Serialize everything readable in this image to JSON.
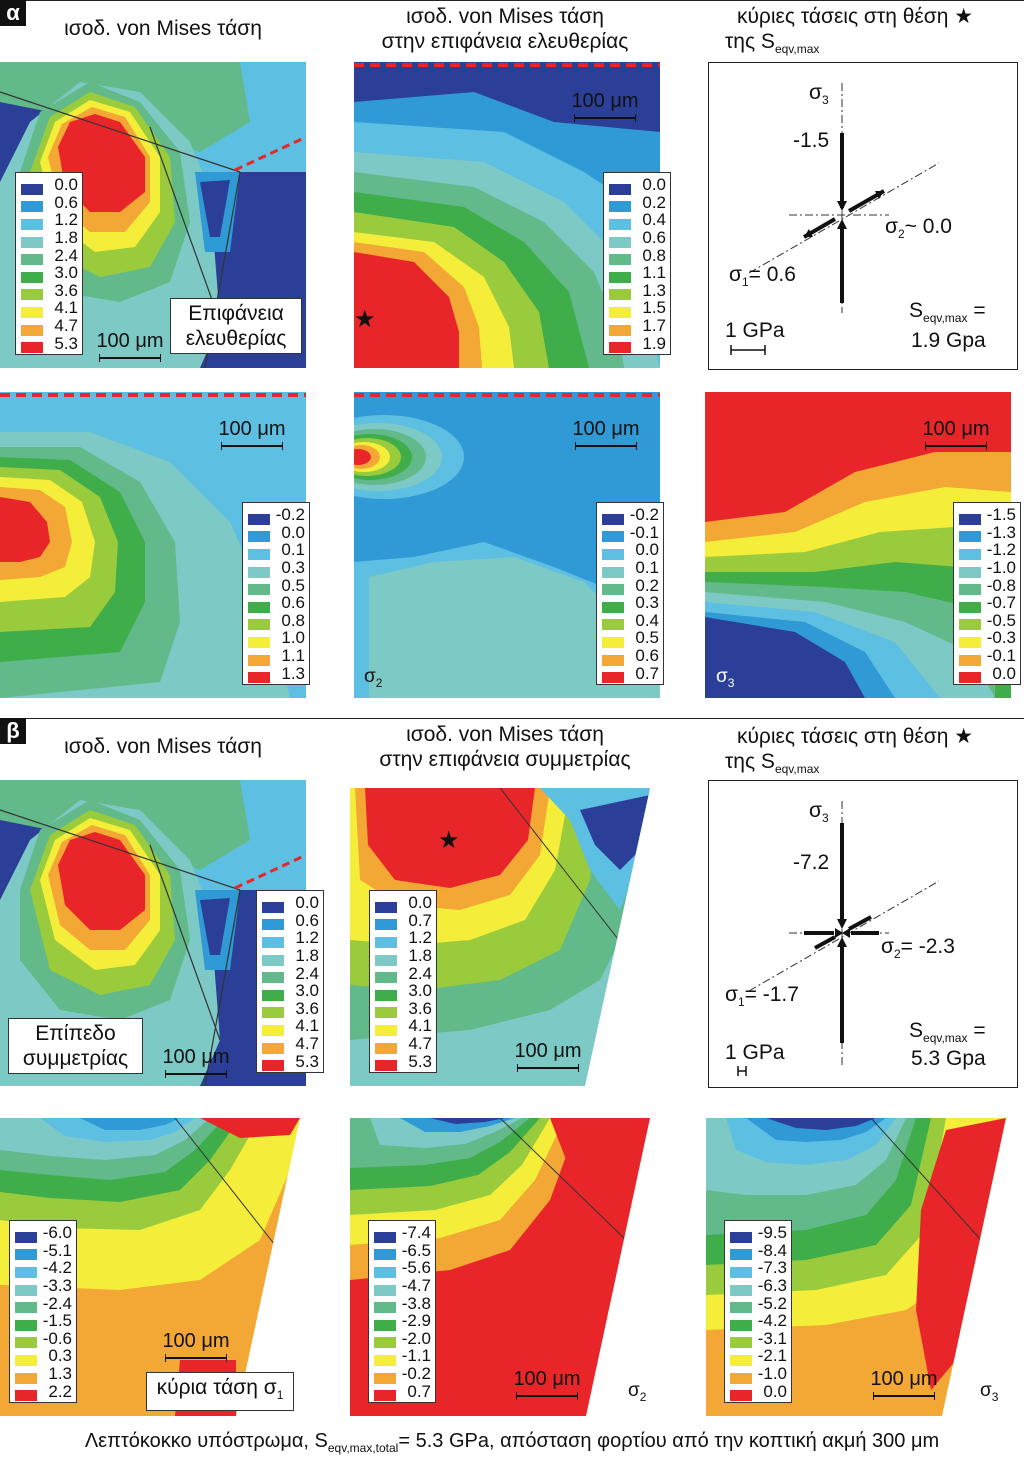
{
  "section_a": {
    "badge": "α",
    "titles": {
      "col1": "ισοδ. von Mises τάση",
      "col2_line1": "ισοδ. von Mises τάση",
      "col2_line2": "στην επιφάνεια ελευθερίας",
      "col3_line1": "κύριες τάσεις στη θέση ★",
      "col3_line2_prefix": "της S",
      "col3_line2_sub": "eqv,max"
    },
    "legends": {
      "vm1": [
        "0.0",
        "0.6",
        "1.2",
        "1.8",
        "2.4",
        "3.0",
        "3.6",
        "4.1",
        "4.7",
        "5.3"
      ],
      "vm2": [
        "0.0",
        "0.2",
        "0.4",
        "0.6",
        "0.8",
        "1.1",
        "1.3",
        "1.5",
        "1.7",
        "1.9"
      ],
      "s1": [
        "-0.2",
        "0.0",
        "0.1",
        "0.3",
        "0.5",
        "0.6",
        "0.8",
        "1.0",
        "1.1",
        "1.3"
      ],
      "s2": [
        "-0.2",
        "-0.1",
        "0.0",
        "0.1",
        "0.2",
        "0.3",
        "0.4",
        "0.5",
        "0.6",
        "0.7"
      ],
      "s3": [
        "-1.5",
        "-1.3",
        "-1.2",
        "-1.0",
        "-0.8",
        "-0.7",
        "-0.5",
        "-0.3",
        "-0.1",
        "0.0"
      ]
    },
    "scale_label": "100 μm",
    "surface_label_line1": "Επιφάνεια",
    "surface_label_line2": "ελευθερίας",
    "sigma2_label": "σ",
    "sigma2_sub": "2",
    "sigma3_label": "σ",
    "sigma3_sub": "3",
    "stress": {
      "s3_axis_prefix": "σ",
      "s3_axis_sub": "3",
      "s3_value": "-1.5",
      "s2_prefix": "σ",
      "s2_sub": "2",
      "s2_value": "~ 0.0",
      "s1_prefix": "σ",
      "s1_sub": "1",
      "s1_value": "= 0.6",
      "unit": "1 GPa",
      "seqv_prefix": "S",
      "seqv_sub": "eqv,max",
      "seqv_eq": " =",
      "seqv_value": "1.9 Gpa"
    }
  },
  "section_b": {
    "badge": "β",
    "titles": {
      "col1": "ισοδ. von Mises τάση",
      "col2_line1": "ισοδ. von Mises τάση",
      "col2_line2": "στην επιφάνεια συμμετρίας",
      "col3_line1": "κύριες τάσεις στη θέση ★",
      "col3_line2_prefix": "της S",
      "col3_line2_sub": "eqv,max"
    },
    "legends": {
      "vm1": [
        "0.0",
        "0.6",
        "1.2",
        "1.8",
        "2.4",
        "3.0",
        "3.6",
        "4.1",
        "4.7",
        "5.3"
      ],
      "vm2": [
        "0.0",
        "0.7",
        "1.2",
        "1.8",
        "2.4",
        "3.0",
        "3.6",
        "4.1",
        "4.7",
        "5.3"
      ],
      "s1": [
        "-6.0",
        "-5.1",
        "-4.2",
        "-3.3",
        "-2.4",
        "-1.5",
        "-0.6",
        "0.3",
        "1.3",
        "2.2"
      ],
      "s2": [
        "-7.4",
        "-6.5",
        "-5.6",
        "-4.7",
        "-3.8",
        "-2.9",
        "-2.0",
        "-1.1",
        "-0.2",
        "0.7"
      ],
      "s3": [
        "-9.5",
        "-8.4",
        "-7.3",
        "-6.3",
        "-5.2",
        "-4.2",
        "-3.1",
        "-2.1",
        "-1.0",
        "0.0"
      ]
    },
    "scale_label": "100 μm",
    "symmetry_label_line1": "Επίπεδο",
    "symmetry_label_line2": "συμμετρίας",
    "sigma1_box_label": "κύρια τάση σ",
    "sigma1_box_sub": "1",
    "sigma2_label": "σ",
    "sigma2_sub": "2",
    "sigma3_label": "σ",
    "sigma3_sub": "3",
    "stress": {
      "s3_axis_prefix": "σ",
      "s3_axis_sub": "3",
      "s3_value": "-7.2",
      "s2_prefix": "σ",
      "s2_sub": "2",
      "s2_value": "= -2.3",
      "s1_prefix": "σ",
      "s1_sub": "1",
      "s1_value": "= -1.7",
      "unit": "1 GPa",
      "seqv_prefix": "S",
      "seqv_sub": "eqv,max",
      "seqv_eq": " =",
      "seqv_value": "5.3 Gpa"
    }
  },
  "caption": {
    "prefix": "Λεπτόκοκκο υπόστρωμα, S",
    "sub": "eqv,max,total",
    "suffix": "= 5.3 GPa, απόσταση φορτίου από την κοπτική ακμή 300 μm"
  },
  "colors": {
    "c0": "#2b3f98",
    "c1": "#2f9ad6",
    "c2": "#5dbfe1",
    "c3": "#7dc9c6",
    "c4": "#62ba8a",
    "c5": "#3fad4a",
    "c6": "#9acb3c",
    "c7": "#f4ee3a",
    "c8": "#f3a735",
    "c9": "#e8262a",
    "star": "#111111",
    "dash": "#e8262a"
  }
}
